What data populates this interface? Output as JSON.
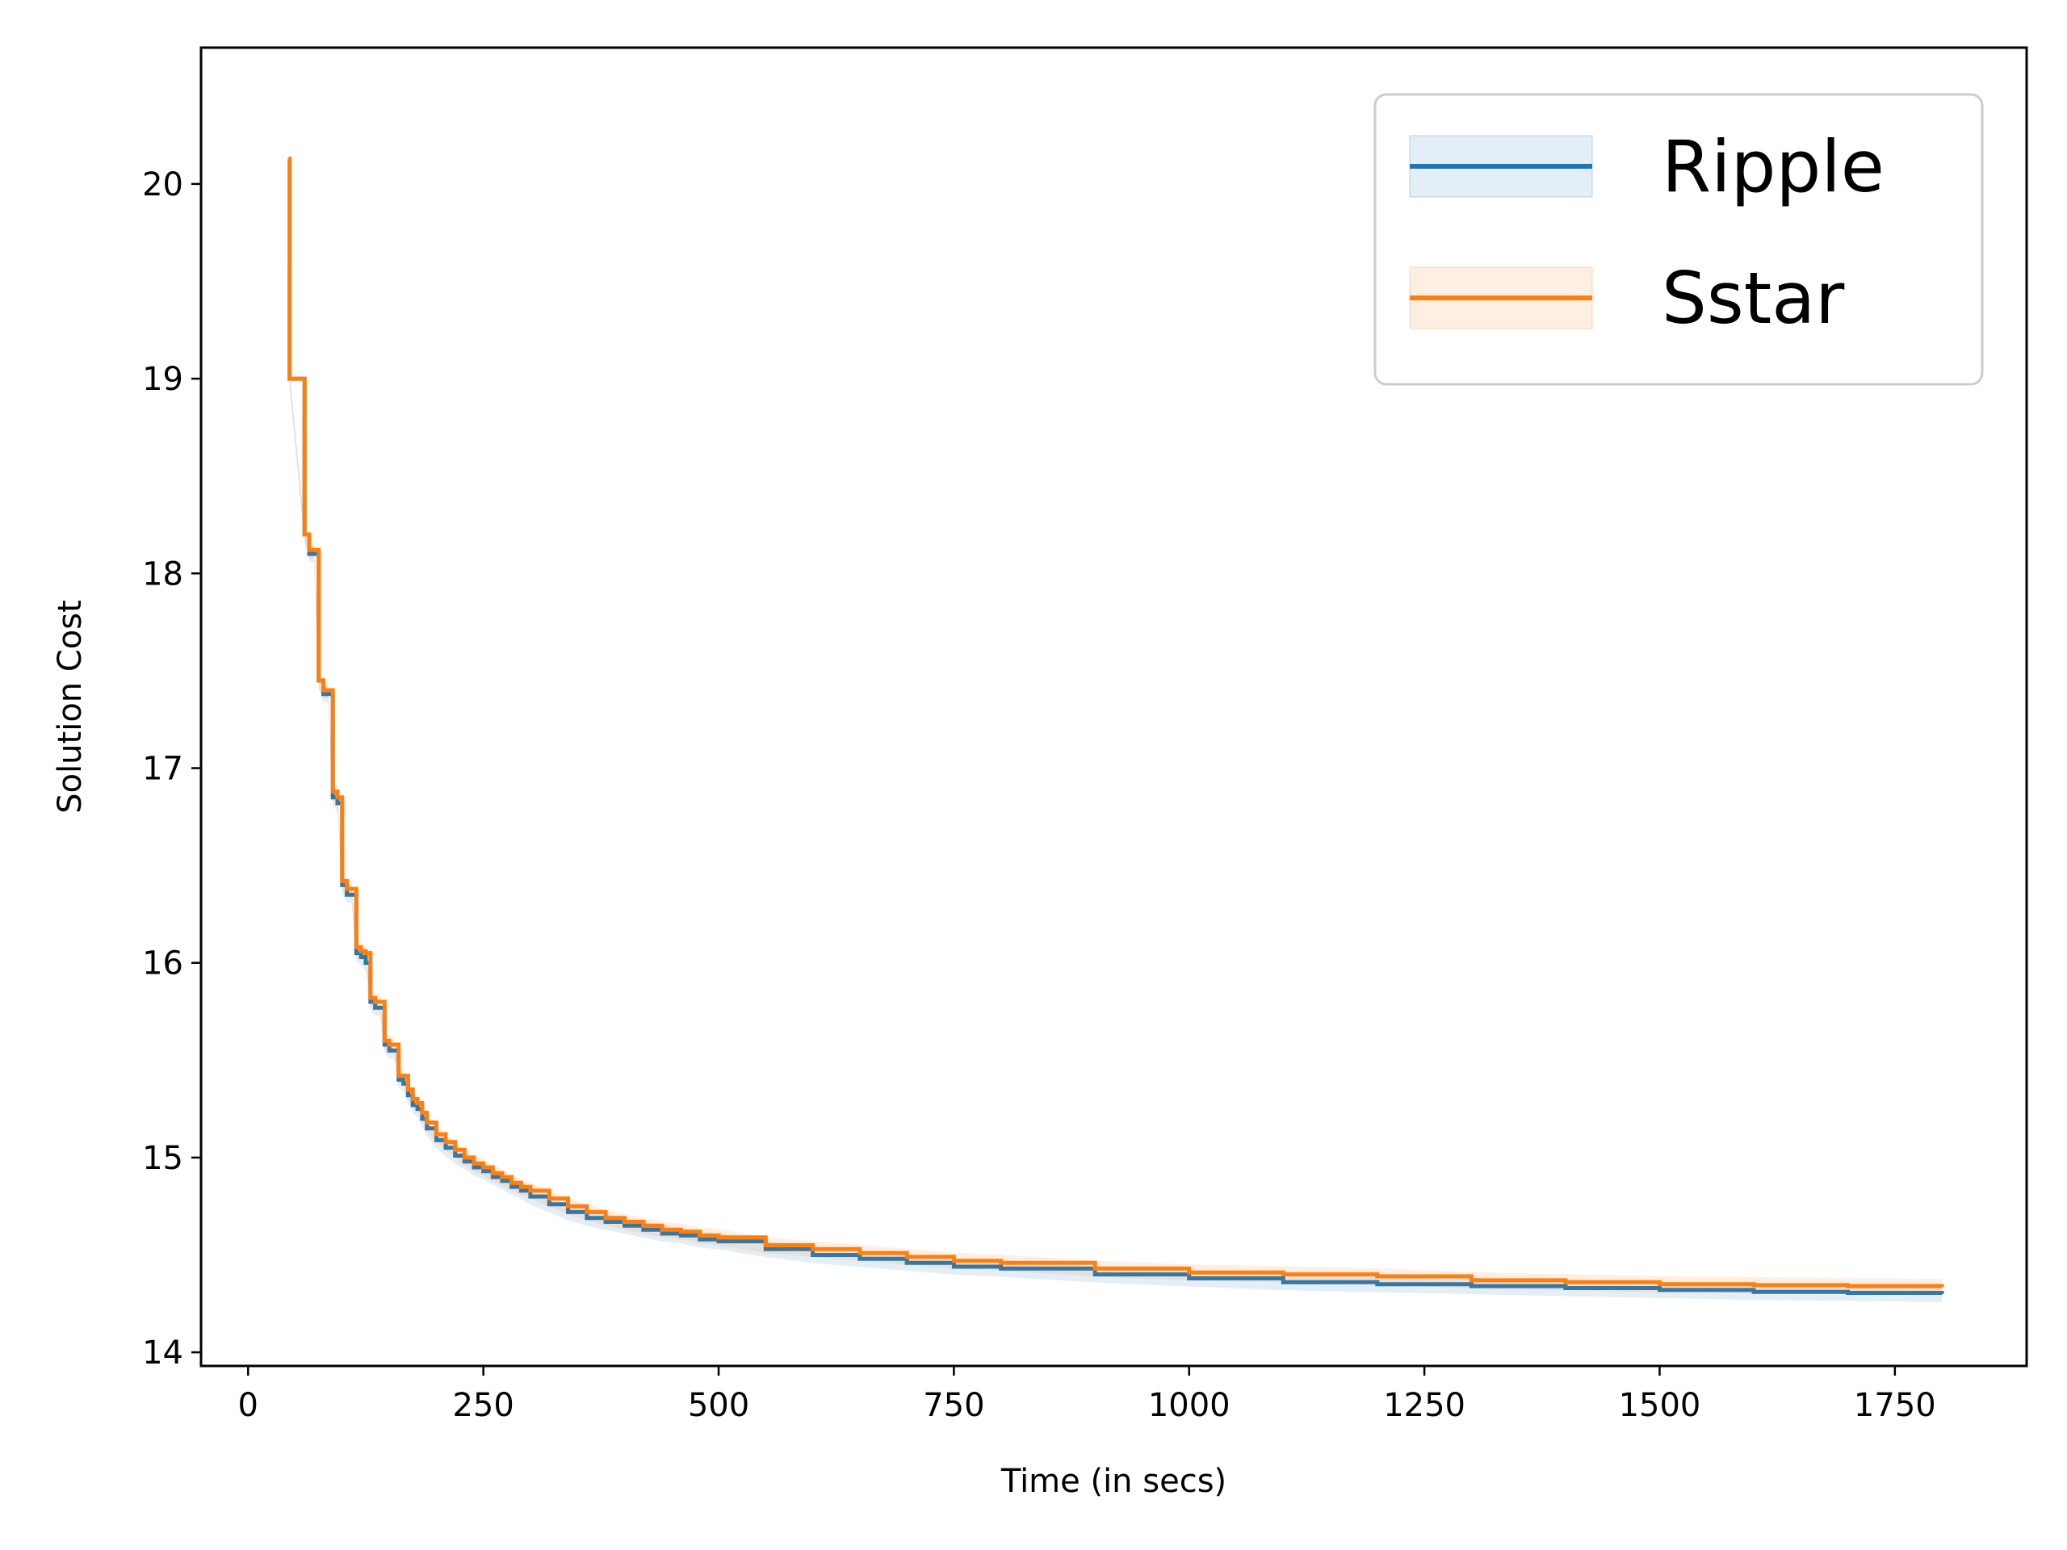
{
  "chart_data": {
    "type": "line",
    "xlabel": "Time (in secs)",
    "ylabel": "Solution Cost",
    "xlim": [
      -50,
      1890
    ],
    "ylim": [
      13.93,
      20.7
    ],
    "xticks": [
      0,
      250,
      500,
      750,
      1000,
      1250,
      1500,
      1750
    ],
    "yticks": [
      14,
      15,
      16,
      17,
      18,
      19,
      20
    ],
    "legend_position": "top-right",
    "grid": false,
    "series": [
      {
        "name": "Ripple",
        "color": "#1f77b4",
        "band_color": "#1f77b4",
        "x": [
          43,
          44,
          60,
          65,
          70,
          75,
          80,
          85,
          90,
          95,
          100,
          105,
          110,
          115,
          120,
          125,
          130,
          135,
          140,
          145,
          150,
          155,
          160,
          165,
          170,
          175,
          180,
          185,
          190,
          200,
          210,
          220,
          230,
          240,
          250,
          260,
          270,
          280,
          290,
          300,
          320,
          340,
          360,
          380,
          400,
          420,
          440,
          460,
          480,
          500,
          550,
          600,
          650,
          700,
          750,
          800,
          900,
          1000,
          1100,
          1200,
          1300,
          1400,
          1500,
          1600,
          1700,
          1800
        ],
        "y": [
          19.55,
          19.0,
          18.2,
          18.1,
          18.1,
          17.45,
          17.38,
          17.38,
          16.85,
          16.82,
          16.4,
          16.35,
          16.35,
          16.05,
          16.03,
          16.0,
          15.8,
          15.77,
          15.77,
          15.58,
          15.55,
          15.55,
          15.4,
          15.38,
          15.32,
          15.27,
          15.25,
          15.2,
          15.15,
          15.09,
          15.05,
          15.01,
          14.98,
          14.95,
          14.93,
          14.9,
          14.88,
          14.85,
          14.83,
          14.8,
          14.76,
          14.72,
          14.69,
          14.67,
          14.65,
          14.63,
          14.61,
          14.6,
          14.58,
          14.57,
          14.53,
          14.5,
          14.48,
          14.46,
          14.44,
          14.43,
          14.4,
          14.38,
          14.36,
          14.35,
          14.34,
          14.33,
          14.32,
          14.31,
          14.305,
          14.3
        ]
      },
      {
        "name": "Sstar",
        "color": "#ff7f0e",
        "band_color": "#ff7f0e",
        "x": [
          43,
          44,
          60,
          65,
          70,
          75,
          80,
          85,
          90,
          95,
          100,
          105,
          110,
          115,
          120,
          125,
          130,
          135,
          140,
          145,
          150,
          155,
          160,
          165,
          170,
          175,
          180,
          185,
          190,
          200,
          210,
          220,
          230,
          240,
          250,
          260,
          270,
          280,
          290,
          300,
          320,
          340,
          360,
          380,
          400,
          420,
          440,
          460,
          480,
          500,
          550,
          600,
          650,
          700,
          750,
          800,
          900,
          1000,
          1100,
          1200,
          1300,
          1400,
          1500,
          1600,
          1700,
          1800
        ],
        "y": [
          20.13,
          19.0,
          18.2,
          18.12,
          18.12,
          17.45,
          17.4,
          17.4,
          16.88,
          16.85,
          16.42,
          16.38,
          16.38,
          16.08,
          16.06,
          16.05,
          15.82,
          15.8,
          15.8,
          15.6,
          15.58,
          15.58,
          15.42,
          15.42,
          15.35,
          15.3,
          15.28,
          15.23,
          15.18,
          15.12,
          15.08,
          15.04,
          15.0,
          14.97,
          14.95,
          14.92,
          14.9,
          14.87,
          14.85,
          14.83,
          14.79,
          14.75,
          14.72,
          14.69,
          14.67,
          14.65,
          14.63,
          14.62,
          14.6,
          14.59,
          14.55,
          14.53,
          14.51,
          14.49,
          14.47,
          14.46,
          14.43,
          14.41,
          14.4,
          14.39,
          14.37,
          14.36,
          14.35,
          14.345,
          14.34,
          14.335
        ]
      }
    ]
  }
}
